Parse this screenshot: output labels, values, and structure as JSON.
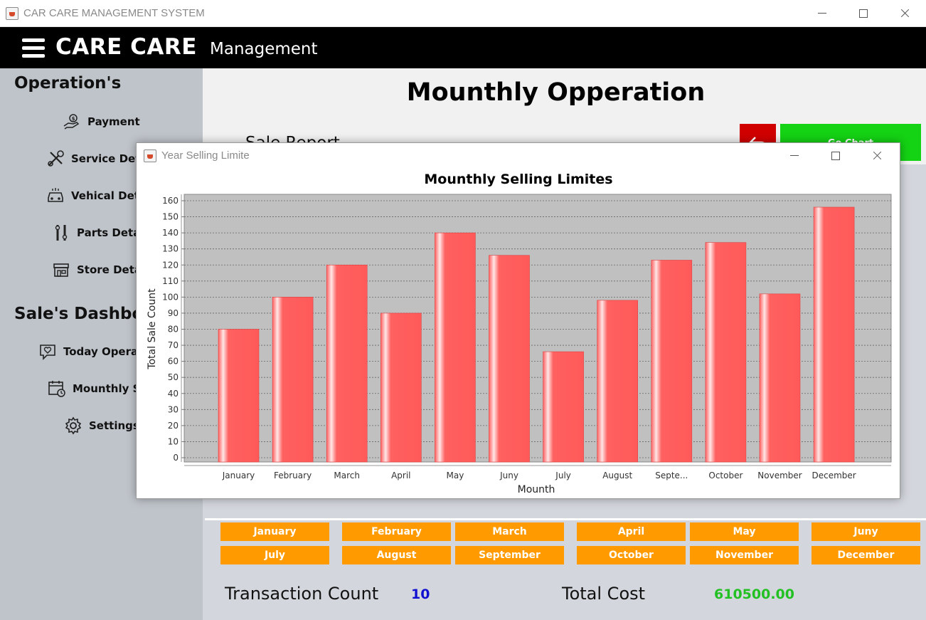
{
  "window": {
    "title": "CAR CARE MANAGEMENT SYSTEM"
  },
  "header": {
    "brand": "CARE CARE",
    "subtitle": "Management"
  },
  "sidebar": {
    "operations_title": "Operation's",
    "operations": [
      {
        "label": "Payment",
        "icon": "payment-hand-icon"
      },
      {
        "label": "Service Deta",
        "icon": "tools-icon"
      },
      {
        "label": "Vehical Det",
        "icon": "car-icon"
      },
      {
        "label": "Parts Detai",
        "icon": "parts-icon"
      },
      {
        "label": "Store Deta",
        "icon": "store-icon"
      }
    ],
    "sales_title": "Sale's Dashbo",
    "sales": [
      {
        "label": "Today Operat",
        "icon": "heart-chat-icon"
      },
      {
        "label": "Mounthly S",
        "icon": "calendar-icon"
      },
      {
        "label": "Settings",
        "icon": "gear-icon"
      }
    ]
  },
  "main": {
    "title": "Mounthly Opperation",
    "sale_report": "Sale Report",
    "go_chart": "Go Chart",
    "months_row1": [
      "January",
      "February",
      "March",
      "April",
      "May",
      "Juny"
    ],
    "months_row2": [
      "July",
      "August",
      "September",
      "October",
      "November",
      "December"
    ],
    "transaction_count_label": "Transaction Count",
    "transaction_count_value": "10",
    "total_cost_label": "Total Cost",
    "total_cost_value": "610500.00"
  },
  "colors": {
    "header_bg": "#000000",
    "sidebar_bg": "#bfc4ca",
    "month_button": "#ff9a00",
    "go_chart": "#14d214",
    "back_button": "#d00000",
    "transaction_value": "#1010d0",
    "total_cost_value": "#22c022",
    "bar": "#ff6060",
    "plot_bg": "#c0c0c0"
  },
  "dialog": {
    "title": "Year Selling Limite"
  },
  "chart_data": {
    "type": "bar",
    "title": "Mounthly Selling Limites",
    "xlabel": "Mounth",
    "ylabel": "Total Sale Count",
    "categories": [
      "January",
      "February",
      "March",
      "April",
      "May",
      "Juny",
      "July",
      "August",
      "Septe...",
      "October",
      "November",
      "December"
    ],
    "values": [
      80,
      100,
      120,
      90,
      140,
      126,
      66,
      98,
      123,
      134,
      102,
      156
    ],
    "ylim": [
      0,
      160
    ],
    "yticks": [
      0,
      10,
      20,
      30,
      40,
      50,
      60,
      70,
      80,
      90,
      100,
      110,
      120,
      130,
      140,
      150,
      160
    ],
    "grid": true,
    "legend": "none"
  }
}
